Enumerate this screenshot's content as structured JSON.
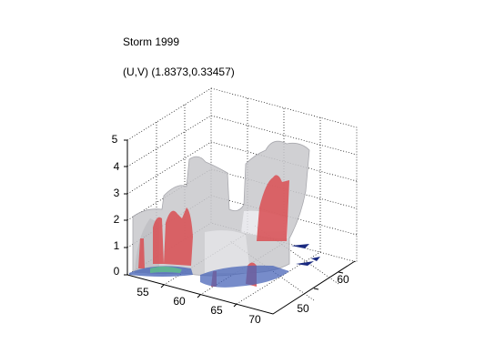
{
  "figure": {
    "title": "Storm 1999",
    "subtitle": "(U,V) (1.8373,0.33457)",
    "axes": {
      "z_ticks": [
        "0",
        "1",
        "2",
        "3",
        "4",
        "5"
      ],
      "x_ticks": [
        "55",
        "60",
        "65",
        "70"
      ],
      "y_ticks": [
        "50",
        "60"
      ]
    }
  }
}
